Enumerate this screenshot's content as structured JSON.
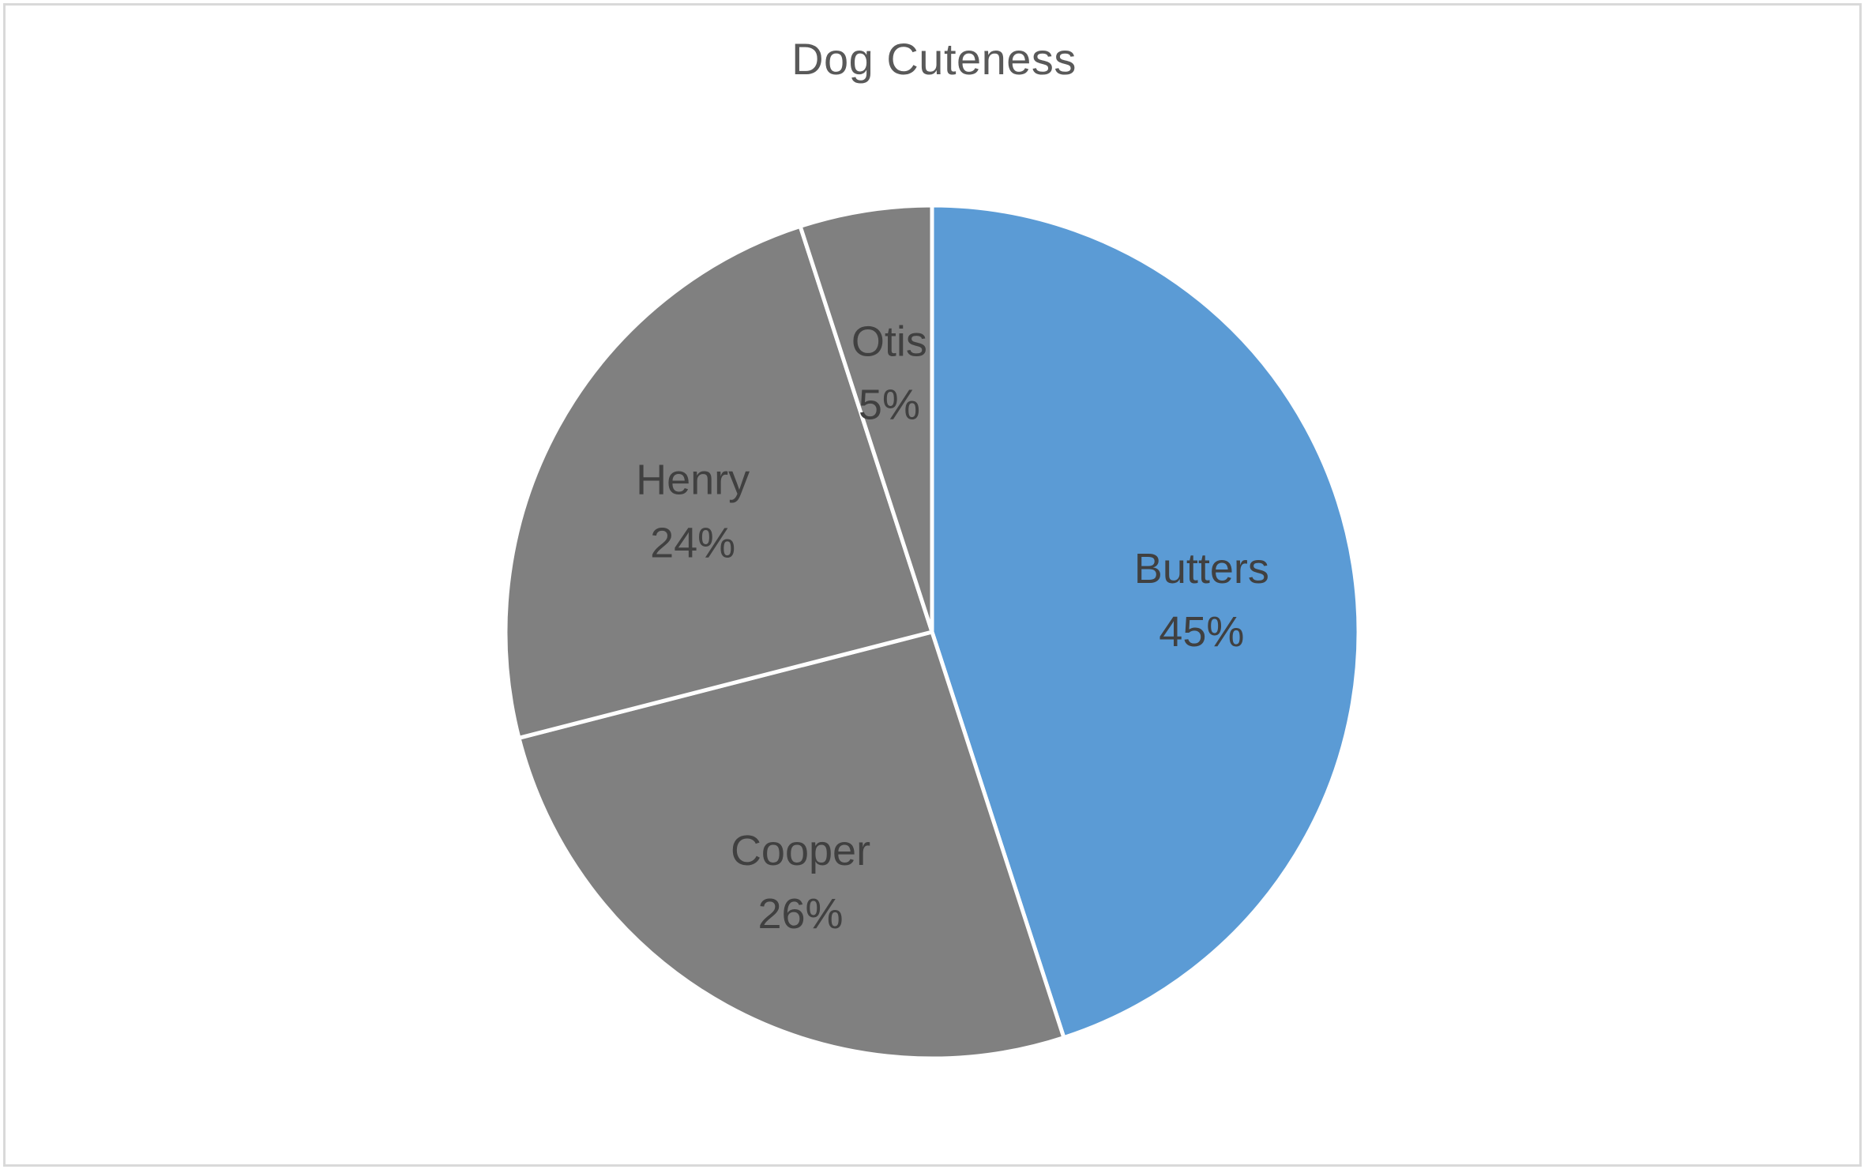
{
  "chart_data": {
    "type": "pie",
    "title": "Dog Cuteness",
    "slices": [
      {
        "label": "Butters",
        "value": 45,
        "percent_label": "45%",
        "color": "#5b9bd5"
      },
      {
        "label": "Cooper",
        "value": 26,
        "percent_label": "26%",
        "color": "#808080"
      },
      {
        "label": "Henry",
        "value": 24,
        "percent_label": "24%",
        "color": "#808080"
      },
      {
        "label": "Otis",
        "value": 5,
        "percent_label": "5%",
        "color": "#808080"
      }
    ],
    "start_angle": "12 o'clock",
    "direction": "clockwise",
    "legend": "none",
    "slice_border_color": "#ffffff"
  }
}
